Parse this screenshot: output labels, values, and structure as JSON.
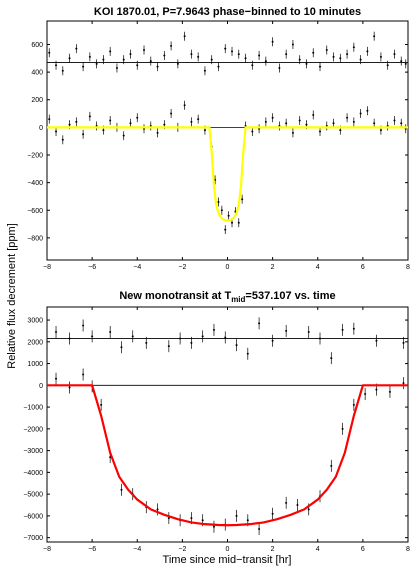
{
  "figure": {
    "ylabel": "Relative flux decrement [ppm]",
    "xlabel": "Time since mid−transit [hr]"
  },
  "chart_data": [
    {
      "type": "scatter",
      "title": "KOI 1870.01, P=7.9643 phase−binned to 10 minutes",
      "xlim": [
        -8,
        8
      ],
      "ylim": [
        -960,
        770
      ],
      "xticks": [
        -8,
        -6,
        -4,
        -2,
        0,
        2,
        4,
        6,
        8
      ],
      "yticks": [
        -800,
        -600,
        -400,
        -200,
        0,
        200,
        400,
        600
      ],
      "grid": false,
      "reference_lines": [
        0,
        470
      ],
      "model_color": "#ffff00",
      "model": {
        "x": [
          -8,
          -0.8,
          -0.7,
          -0.6,
          -0.5,
          -0.4,
          -0.3,
          -0.2,
          -0.1,
          0,
          0.1,
          0.2,
          0.3,
          0.4,
          0.5,
          0.6,
          0.7,
          0.8,
          8
        ],
        "y": [
          0,
          0,
          -180,
          -420,
          -560,
          -620,
          -650,
          -665,
          -672,
          -675,
          -672,
          -665,
          -650,
          -620,
          -560,
          -420,
          -180,
          0,
          0
        ]
      },
      "series": [
        {
          "offset": 0,
          "x": [
            -7.9,
            -7.6,
            -7.3,
            -7.0,
            -6.7,
            -6.4,
            -6.1,
            -5.8,
            -5.5,
            -5.2,
            -4.9,
            -4.6,
            -4.3,
            -4.0,
            -3.7,
            -3.4,
            -3.1,
            -2.8,
            -2.5,
            -2.2,
            -1.9,
            -1.6,
            -1.3,
            -1.0,
            -0.7,
            -0.55,
            -0.4,
            -0.25,
            -0.1,
            0.05,
            0.2,
            0.35,
            0.5,
            0.65,
            0.8,
            1.1,
            1.4,
            1.7,
            2.0,
            2.3,
            2.6,
            2.9,
            3.2,
            3.5,
            3.8,
            4.1,
            4.4,
            4.7,
            5.0,
            5.3,
            5.6,
            5.9,
            6.2,
            6.5,
            6.8,
            7.1,
            7.4,
            7.7,
            7.9
          ],
          "y": [
            60,
            -30,
            -90,
            20,
            40,
            -50,
            80,
            10,
            -20,
            50,
            0,
            -60,
            30,
            70,
            -10,
            10,
            -40,
            20,
            100,
            0,
            160,
            40,
            60,
            -20,
            -140,
            -380,
            -540,
            -600,
            -740,
            -640,
            -690,
            -610,
            -690,
            -520,
            10,
            -30,
            -10,
            40,
            70,
            10,
            30,
            -40,
            50,
            20,
            90,
            -30,
            10,
            30,
            -20,
            70,
            40,
            100,
            120,
            30,
            -20,
            10,
            50,
            30,
            -10
          ]
        },
        {
          "offset": 470,
          "x": [
            -7.9,
            -7.6,
            -7.3,
            -7.0,
            -6.7,
            -6.4,
            -6.1,
            -5.8,
            -5.5,
            -5.2,
            -4.9,
            -4.6,
            -4.3,
            -4.0,
            -3.7,
            -3.4,
            -3.1,
            -2.8,
            -2.5,
            -2.2,
            -1.9,
            -1.6,
            -1.3,
            -1.0,
            -0.7,
            -0.4,
            -0.1,
            0.2,
            0.5,
            0.8,
            1.1,
            1.4,
            1.7,
            2.0,
            2.3,
            2.6,
            2.9,
            3.2,
            3.5,
            3.8,
            4.1,
            4.4,
            4.7,
            5.0,
            5.3,
            5.6,
            5.9,
            6.2,
            6.5,
            6.8,
            7.1,
            7.4,
            7.7,
            7.9
          ],
          "y": [
            70,
            -20,
            -60,
            30,
            100,
            -30,
            40,
            -10,
            20,
            80,
            -40,
            20,
            60,
            -20,
            90,
            10,
            -30,
            50,
            120,
            -10,
            190,
            60,
            40,
            -60,
            20,
            -30,
            100,
            80,
            60,
            30,
            -20,
            50,
            10,
            150,
            -40,
            60,
            130,
            20,
            -10,
            70,
            -30,
            90,
            40,
            30,
            60,
            110,
            20,
            80,
            190,
            40,
            -20,
            60,
            10,
            -10
          ]
        }
      ]
    },
    {
      "type": "scatter",
      "title": "New monotransit at T",
      "title_sub": "mid",
      "title_rest": "=537.107 vs. time",
      "xlim": [
        -8,
        8
      ],
      "ylim": [
        -7200,
        3600
      ],
      "xticks": [
        -8,
        -6,
        -4,
        -2,
        0,
        2,
        4,
        6,
        8
      ],
      "yticks": [
        -7000,
        -6000,
        -5000,
        -4000,
        -3000,
        -2000,
        -1000,
        0,
        1000,
        2000,
        3000
      ],
      "grid": false,
      "reference_lines": [
        0,
        2150
      ],
      "model_color": "#ff0000",
      "model": {
        "x": [
          -8,
          -6,
          -5.6,
          -5.2,
          -4.8,
          -4.4,
          -4.0,
          -3.4,
          -2.8,
          -2.2,
          -1.6,
          -1.0,
          -0.4,
          0,
          0.4,
          1.0,
          1.6,
          2.2,
          2.8,
          3.4,
          4.0,
          4.4,
          4.8,
          5.2,
          5.6,
          6,
          8
        ],
        "y": [
          0,
          0,
          -1400,
          -3100,
          -4200,
          -4800,
          -5250,
          -5700,
          -5950,
          -6150,
          -6300,
          -6380,
          -6420,
          -6430,
          -6420,
          -6380,
          -6300,
          -6150,
          -5950,
          -5700,
          -5250,
          -4800,
          -4200,
          -3100,
          -1400,
          0,
          0
        ]
      },
      "series": [
        {
          "offset": 0,
          "x": [
            -7.6,
            -7.0,
            -6.4,
            -6.0,
            -5.6,
            -5.2,
            -4.7,
            -4.2,
            -3.6,
            -3.1,
            -2.6,
            -2.1,
            -1.6,
            -1.1,
            -0.6,
            -0.1,
            0.4,
            0.9,
            1.4,
            2.0,
            2.6,
            3.1,
            3.6,
            4.1,
            4.6,
            5.1,
            5.6,
            6.1,
            6.6,
            7.2,
            7.8
          ],
          "y": [
            300,
            -100,
            500,
            -50,
            -900,
            -3300,
            -4800,
            -5000,
            -5600,
            -5700,
            -6100,
            -6200,
            -6100,
            -6200,
            -6500,
            -6400,
            -6000,
            -6200,
            -6600,
            -5900,
            -5400,
            -5500,
            -5700,
            -5100,
            -3700,
            -2000,
            -900,
            -400,
            -200,
            -300,
            100
          ]
        },
        {
          "offset": 2150,
          "x": [
            -7.6,
            -7.0,
            -6.4,
            -6.0,
            -5.2,
            -4.7,
            -4.2,
            -3.6,
            -2.6,
            -2.1,
            -1.6,
            -1.1,
            -0.6,
            -0.1,
            0.4,
            0.9,
            1.4,
            2.0,
            2.6,
            3.6,
            4.1,
            4.6,
            5.1,
            5.6,
            6.6,
            7.8
          ],
          "y": [
            300,
            0,
            600,
            100,
            300,
            -400,
            100,
            -200,
            -350,
            0,
            -200,
            100,
            400,
            50,
            -300,
            -700,
            700,
            -100,
            350,
            300,
            0,
            -900,
            400,
            450,
            -100,
            -200
          ]
        }
      ]
    }
  ]
}
